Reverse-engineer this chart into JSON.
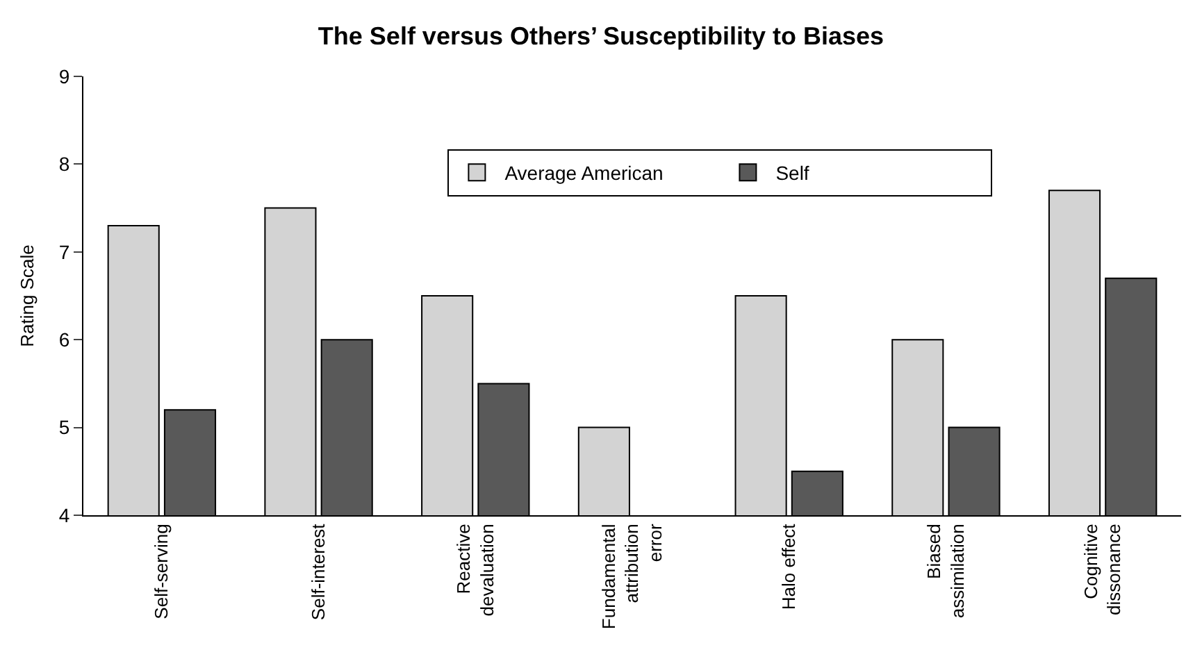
{
  "chart_data": {
    "type": "bar",
    "title": "The Self versus Others’ Susceptibility to Biases",
    "ylabel": "Rating Scale",
    "categories": [
      "Self-serving",
      "Self-interest",
      "Reactive devaluation",
      "Fundamental attribution error",
      "Halo effect",
      "Biased assimilation",
      "Cognitive dissonance"
    ],
    "series": [
      {
        "name": "Average American",
        "color": "#d3d3d3",
        "values": [
          7.3,
          7.5,
          6.5,
          5.0,
          6.5,
          6.0,
          7.7
        ]
      },
      {
        "name": "Self",
        "color": "#595959",
        "values": [
          5.2,
          6.0,
          5.5,
          null,
          4.5,
          5.0,
          6.7
        ]
      }
    ],
    "ylim": [
      4,
      9
    ],
    "yticks": [
      4,
      5,
      6,
      7,
      8,
      9
    ],
    "grid": false,
    "legend": "top"
  }
}
